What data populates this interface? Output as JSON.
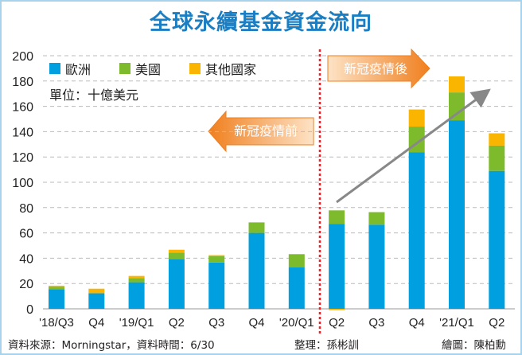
{
  "title": "全球永續基金資金流向",
  "unit": "單位：十億美元",
  "legend": [
    {
      "name": "歐洲",
      "color": "#00a0e0"
    },
    {
      "name": "美國",
      "color": "#7dbb2c"
    },
    {
      "name": "其他國家",
      "color": "#f9b500"
    }
  ],
  "annotations": {
    "before": "新冠疫情前",
    "after": "新冠疫情後"
  },
  "footer": {
    "source": "資料來源：Morningstar，資料時間：6/30",
    "editor": "整理：孫彬訓",
    "artist": "繪圖：陳柏勳"
  },
  "chart_data": {
    "type": "bar",
    "stacked": true,
    "title": "全球永續基金資金流向",
    "ylabel": "單位：十億美元",
    "ylim": [
      0,
      200
    ],
    "yticks": [
      0,
      20,
      40,
      60,
      80,
      100,
      120,
      140,
      160,
      180,
      200
    ],
    "grid": true,
    "legend_position": "top-left",
    "categories": [
      "'18/Q3",
      "Q4",
      "'19/Q1",
      "Q2",
      "Q3",
      "Q4",
      "'20/Q1",
      "Q2",
      "Q3",
      "Q4",
      "'21/Q1",
      "Q2"
    ],
    "series": [
      {
        "name": "歐洲",
        "values": [
          15.5,
          12.3,
          21,
          39.4,
          36.6,
          60,
          32.7,
          67,
          66.5,
          123.6,
          149,
          109
        ]
      },
      {
        "name": "美國",
        "values": [
          1.9,
          0,
          3.3,
          4.9,
          5.1,
          8.3,
          10.5,
          10.8,
          9.9,
          20.4,
          22,
          20
        ]
      },
      {
        "name": "其他國家",
        "values": [
          0.9,
          3.6,
          1.7,
          2.4,
          0.7,
          0,
          0,
          -1,
          0,
          13.5,
          12.7,
          9.7
        ]
      }
    ],
    "divider_after": "'20/Q1"
  }
}
